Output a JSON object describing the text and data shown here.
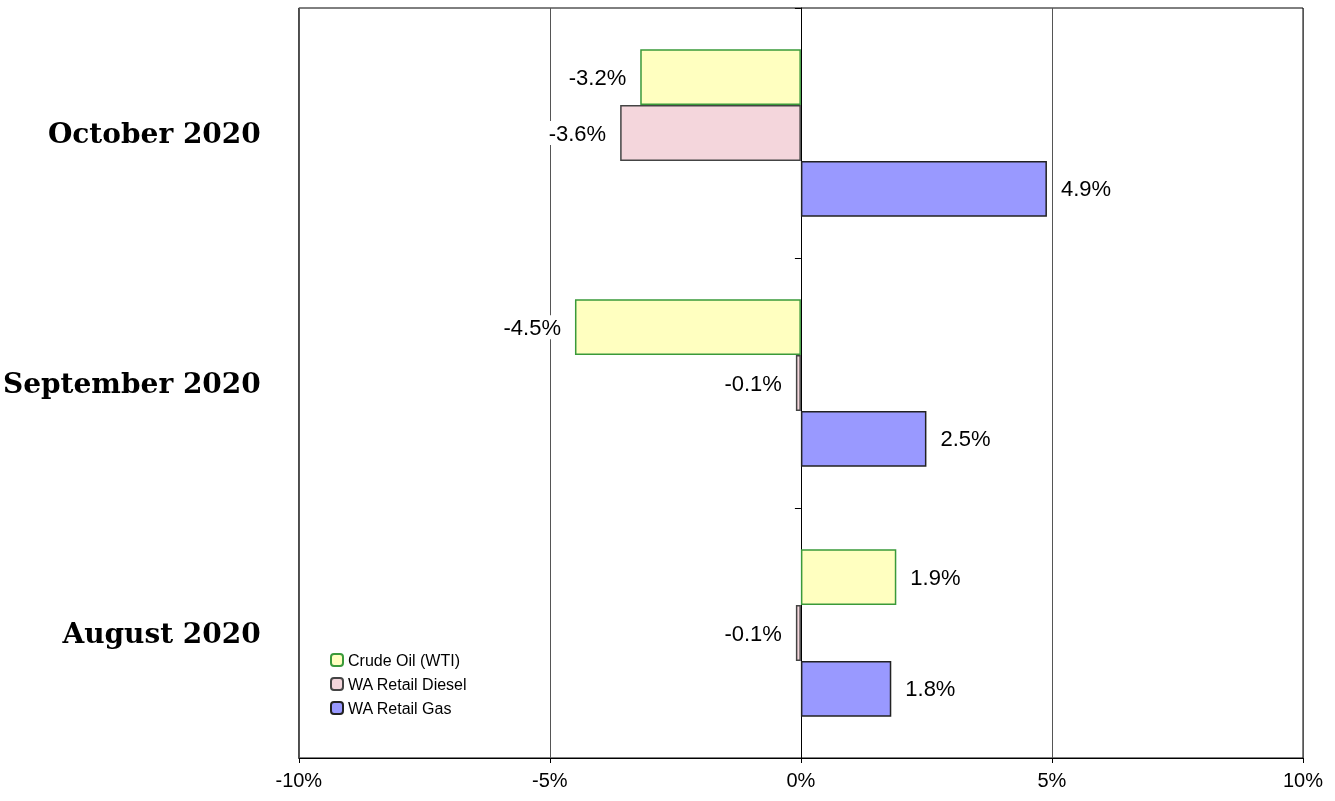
{
  "chart_data": {
    "type": "bar",
    "orientation": "horizontal",
    "categories": [
      "October 2020",
      "September 2020",
      "August 2020"
    ],
    "series": [
      {
        "name": "Crude Oil (WTI)",
        "color": "#ffffc0",
        "values": [
          -3.2,
          -4.5,
          1.9
        ],
        "value_labels": [
          "-3.2%",
          "-4.5%",
          "1.9%"
        ]
      },
      {
        "name": "WA Retail Diesel",
        "color": "#f4d6dc",
        "values": [
          -3.6,
          -0.1,
          -0.1
        ],
        "value_labels": [
          "-3.6%",
          "-0.1%",
          "-0.1%"
        ]
      },
      {
        "name": "WA Retail Gas",
        "color": "#9999ff",
        "values": [
          4.9,
          2.5,
          1.8
        ],
        "value_labels": [
          "4.9%",
          "2.5%",
          "1.8%"
        ]
      }
    ],
    "xlim": [
      -10,
      10
    ],
    "xticks": [
      {
        "value": -10,
        "label": "-10%"
      },
      {
        "value": -5,
        "label": "-5%"
      },
      {
        "value": 0,
        "label": "0%"
      },
      {
        "value": 5,
        "label": "5%"
      },
      {
        "value": 10,
        "label": "10%"
      }
    ],
    "grid": "x",
    "legend": "bottom left"
  }
}
